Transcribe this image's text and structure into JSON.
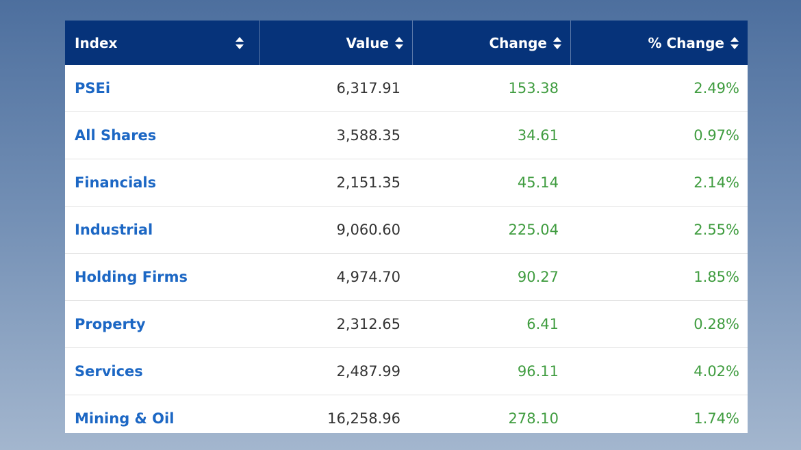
{
  "table": {
    "headers": [
      "Index",
      "Value",
      "Change",
      "% Change"
    ],
    "rows": [
      [
        "PSEi",
        "6,317.91",
        "153.38",
        "2.49%"
      ],
      [
        "All Shares",
        "3,588.35",
        "34.61",
        "0.97%"
      ],
      [
        "Financials",
        "2,151.35",
        "45.14",
        "2.14%"
      ],
      [
        "Industrial",
        "9,060.60",
        "225.04",
        "2.55%"
      ],
      [
        "Holding Firms",
        "4,974.70",
        "90.27",
        "1.85%"
      ],
      [
        "Property",
        "2,312.65",
        "6.41",
        "0.28%"
      ],
      [
        "Services",
        "2,487.99",
        "96.11",
        "4.02%"
      ],
      [
        "Mining & Oil",
        "16,258.96",
        "278.10",
        "1.74%"
      ]
    ]
  }
}
